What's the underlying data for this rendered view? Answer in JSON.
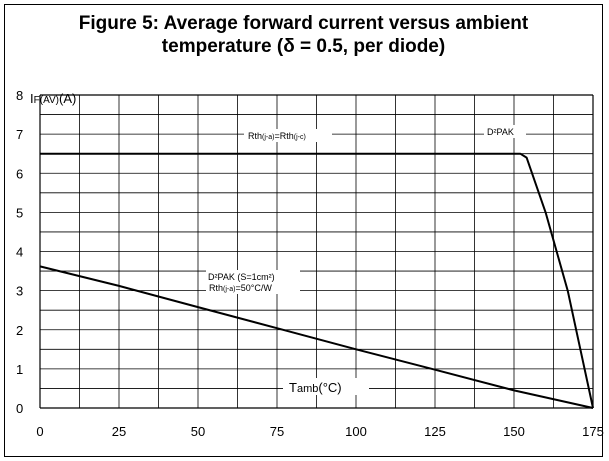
{
  "chart_data": {
    "type": "line",
    "title_line1": "Figure 5: Average forward current versus ambient",
    "title_line2": "temperature (δ = 0.5, per diode)",
    "ylabel_main": "I",
    "ylabel_sub": "F(AV)",
    "ylabel_unit": "(A)",
    "xlabel_main": "T",
    "xlabel_sub": "amb",
    "xlabel_unit": "(°C)",
    "xlim": [
      0,
      175
    ],
    "ylim": [
      0,
      8
    ],
    "x_ticks": [
      "0",
      "25",
      "50",
      "75",
      "100",
      "125",
      "150",
      "175"
    ],
    "y_ticks": [
      "0",
      "1",
      "2",
      "3",
      "4",
      "5",
      "6",
      "7",
      "8"
    ],
    "grid": true,
    "series": [
      {
        "name": "D²PAK",
        "x": [
          0,
          152,
          154,
          160,
          167,
          175
        ],
        "y": [
          6.5,
          6.5,
          6.4,
          5.0,
          3.0,
          0
        ]
      },
      {
        "name": "D²PAK (S=1cm²) Rth(j-a)=50°C/W",
        "x": [
          0,
          25,
          50,
          75,
          100,
          125,
          150,
          175
        ],
        "y": [
          3.62,
          3.12,
          2.58,
          2.04,
          1.5,
          0.98,
          0.45,
          0
        ]
      }
    ],
    "annotations": {
      "rth_main": "Rth",
      "rth_sub1": "(j-a)",
      "rth_mid": "=Rth",
      "rth_sub2": "(j-c)",
      "d2pak": "D²PAK",
      "d2pak_s": "D²PAK (S=1cm²)",
      "rth2_main": "Rth",
      "rth2_sub": "(j-a)",
      "rth2_rest": "=50°C/W"
    }
  }
}
